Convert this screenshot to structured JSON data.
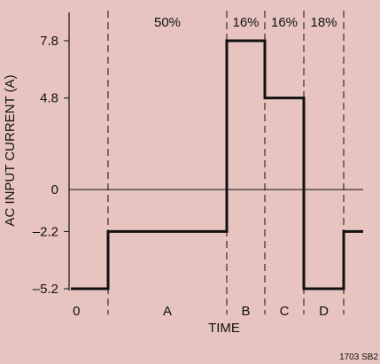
{
  "chart_data": {
    "type": "line",
    "xlabel": "TIME",
    "ylabel": "AC INPUT CURRENT (A)",
    "ylim": [
      -5.2,
      7.8
    ],
    "y_ticks": [
      "7.8",
      "4.8",
      "0",
      "–2.2",
      "–5.2"
    ],
    "y_tick_values": [
      7.8,
      4.8,
      0,
      -2.2,
      -5.2
    ],
    "x_tick_labels": [
      "0",
      "A",
      "B",
      "C",
      "D"
    ],
    "x_segment_boundaries": [
      0,
      1,
      2,
      3,
      4,
      5
    ],
    "segment_percentages": [
      "50%",
      "16%",
      "16%",
      "18%"
    ],
    "series": [
      {
        "x": [
          0,
          1,
          1,
          2,
          2,
          3,
          3,
          4,
          4,
          5,
          5,
          5.2
        ],
        "y": [
          -5.2,
          -5.2,
          -2.2,
          -2.2,
          7.8,
          7.8,
          4.8,
          4.8,
          -5.2,
          -5.2,
          -2.2,
          -2.2
        ]
      }
    ],
    "legend": "none",
    "grid": false,
    "credit": "1703 SB2"
  }
}
